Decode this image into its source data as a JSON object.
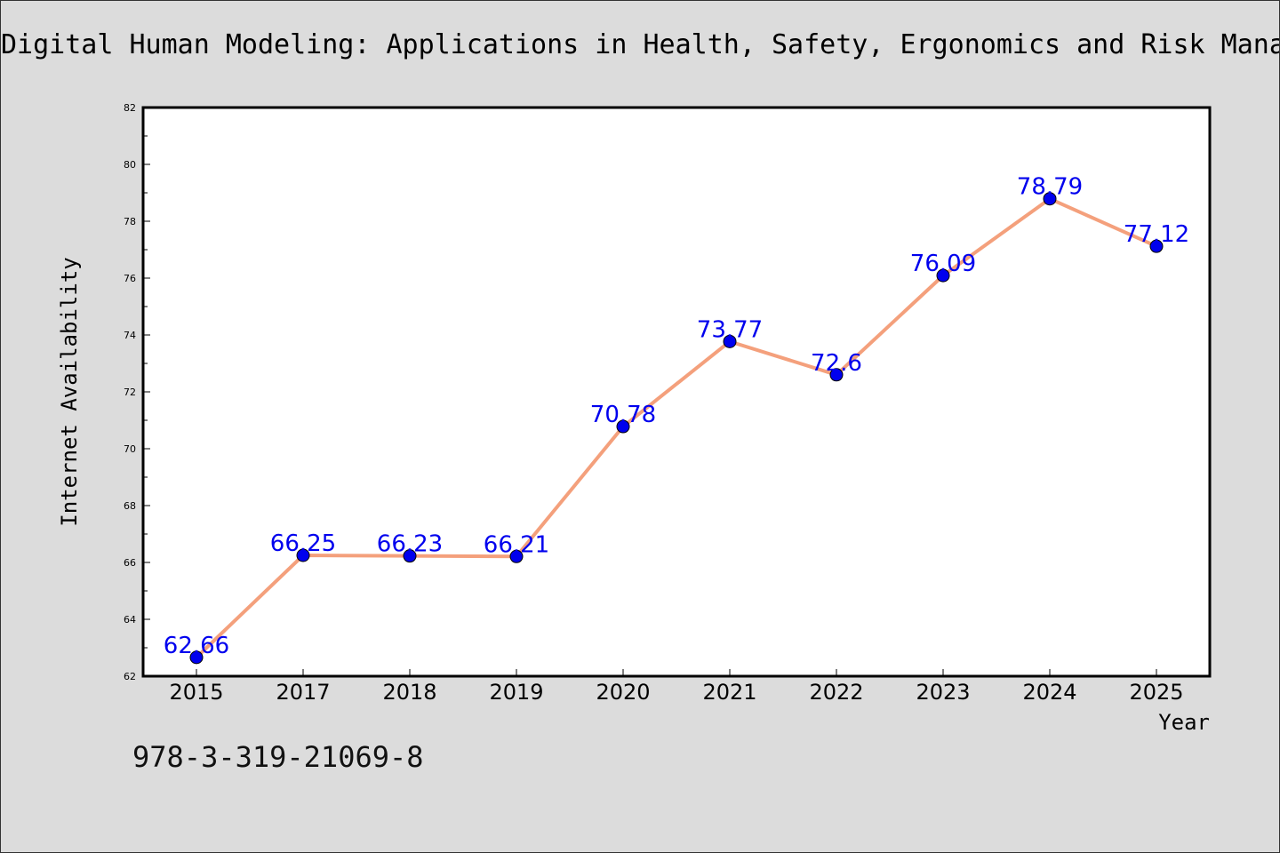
{
  "chart_data": {
    "type": "line",
    "title": "Digital Human Modeling: Applications in Health, Safety, Ergonomics and Risk Management: Ergonomics and Health",
    "xlabel": "Year",
    "ylabel": "Internet Availability",
    "categories": [
      "2015",
      "2017",
      "2018",
      "2019",
      "2020",
      "2021",
      "2022",
      "2023",
      "2024",
      "2025"
    ],
    "series": [
      {
        "values": [
          62.66,
          66.25,
          66.23,
          66.21,
          70.78,
          73.77,
          72.6,
          76.09,
          78.79,
          77.12
        ]
      }
    ],
    "data_labels": [
      "62.66",
      "66.25",
      "66.23",
      "66.21",
      "70.78",
      "73.77",
      "72.6",
      "76.09",
      "78.79",
      "77.12"
    ],
    "ylim": [
      62,
      82
    ],
    "yticks": [
      62,
      64,
      66,
      68,
      70,
      72,
      74,
      76,
      78,
      80,
      82
    ],
    "grid": false,
    "line_color": "#f4a07c",
    "marker_color": "#0000ee",
    "label_color": "#0000ee"
  },
  "footer_text": "978-3-319-21069-8"
}
